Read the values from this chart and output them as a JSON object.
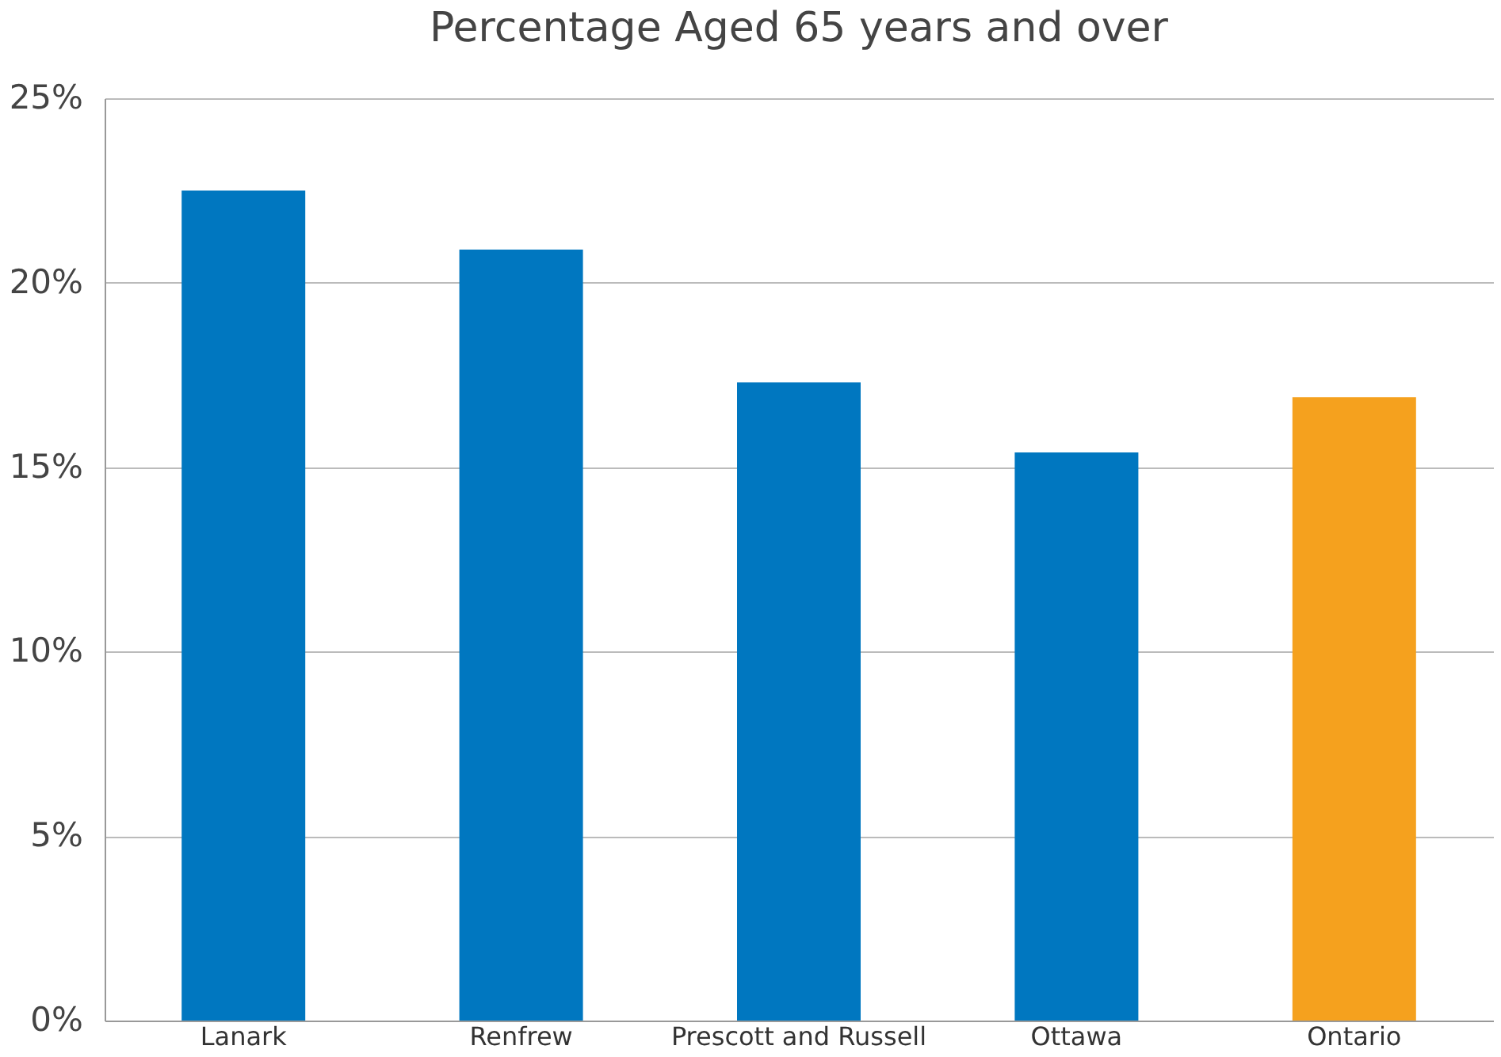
{
  "chart_data": {
    "type": "bar",
    "title": "Percentage Aged 65 years and over",
    "categories": [
      "Lanark",
      "Renfrew",
      "Prescott and Russell",
      "Ottawa",
      "Ontario"
    ],
    "values": [
      22.5,
      20.9,
      17.3,
      15.4,
      16.9
    ],
    "colors": [
      "#0077c0",
      "#0077c0",
      "#0077c0",
      "#0077c0",
      "#f5a11e"
    ],
    "ylim": [
      0,
      25
    ],
    "yticks": [
      {
        "value": 0,
        "label": "0%"
      },
      {
        "value": 5,
        "label": "5%"
      },
      {
        "value": 10,
        "label": "10%"
      },
      {
        "value": 15,
        "label": "15%"
      },
      {
        "value": 20,
        "label": "20%"
      },
      {
        "value": 25,
        "label": "25%"
      }
    ],
    "grid": "y"
  }
}
